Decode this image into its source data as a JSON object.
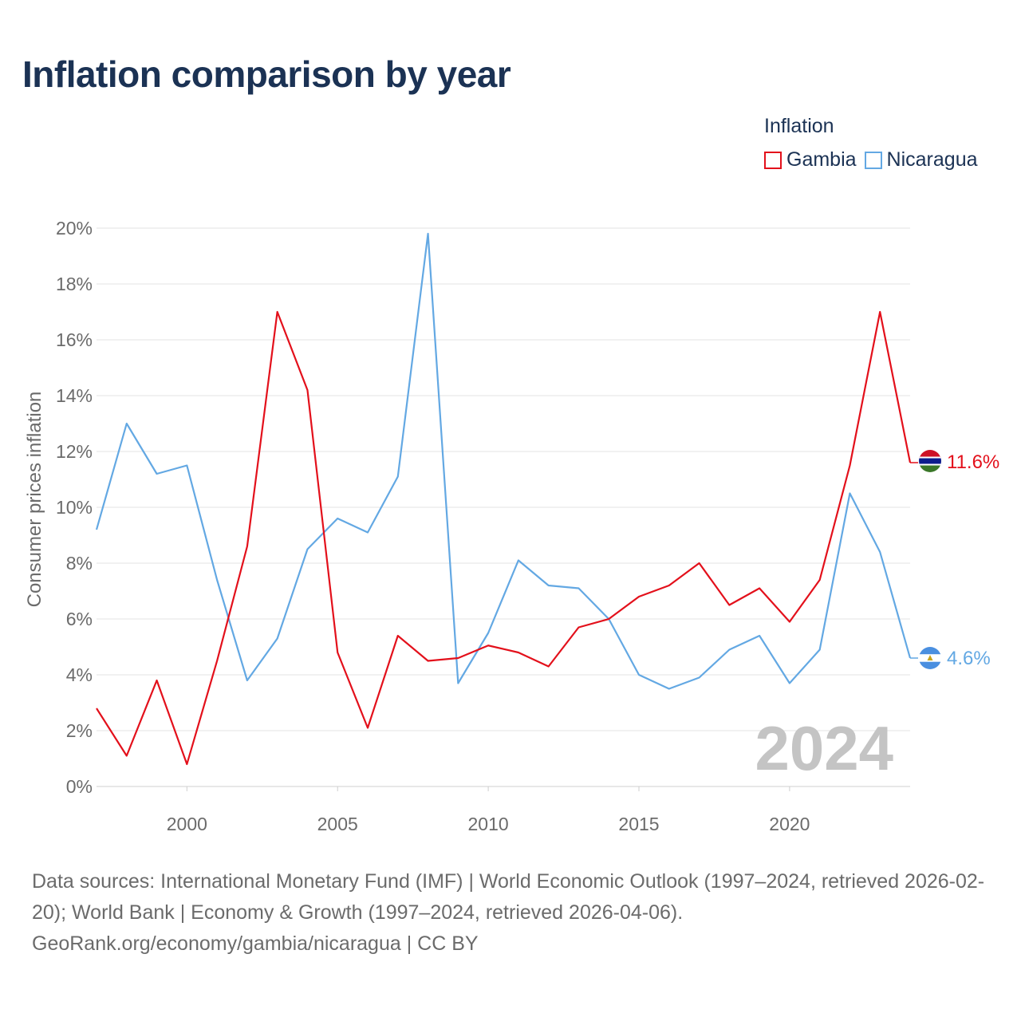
{
  "title": "Inflation comparison by year",
  "legend": {
    "title": "Inflation",
    "items": [
      {
        "label": "Gambia",
        "color": "#e3101b"
      },
      {
        "label": "Nicaragua",
        "color": "#63a8e3"
      }
    ]
  },
  "chart_data": {
    "type": "line",
    "title": "Inflation comparison by year",
    "xlabel": "",
    "ylabel": "Consumer prices inflation",
    "x": [
      1997,
      1998,
      1999,
      2000,
      2001,
      2002,
      2003,
      2004,
      2005,
      2006,
      2007,
      2008,
      2009,
      2010,
      2011,
      2012,
      2013,
      2014,
      2015,
      2016,
      2017,
      2018,
      2019,
      2020,
      2021,
      2022,
      2023,
      2024
    ],
    "xlim": [
      1997,
      2024
    ],
    "ylim": [
      0,
      20
    ],
    "y_ticks": [
      0,
      2,
      4,
      6,
      8,
      10,
      12,
      14,
      16,
      18,
      20
    ],
    "y_tick_labels": [
      "0%",
      "2%",
      "4%",
      "6%",
      "8%",
      "10%",
      "12%",
      "14%",
      "16%",
      "18%",
      "20%"
    ],
    "x_ticks": [
      2000,
      2005,
      2010,
      2015,
      2020
    ],
    "x_tick_labels": [
      "2000",
      "2005",
      "2010",
      "2015",
      "2020"
    ],
    "grid": true,
    "legend_position": "top-right",
    "year_watermark": "2024",
    "series": [
      {
        "name": "Gambia",
        "color": "#e3101b",
        "end_label": "11.6%",
        "values": [
          2.8,
          1.1,
          3.8,
          0.8,
          4.5,
          8.6,
          17.0,
          14.2,
          4.8,
          2.1,
          5.4,
          4.5,
          4.6,
          5.05,
          4.8,
          4.3,
          5.7,
          6.0,
          6.8,
          7.2,
          8.0,
          6.5,
          7.1,
          5.9,
          7.4,
          11.5,
          17.0,
          11.6
        ]
      },
      {
        "name": "Nicaragua",
        "color": "#63a8e3",
        "end_label": "4.6%",
        "values": [
          9.2,
          13.0,
          11.2,
          11.5,
          7.4,
          3.8,
          5.3,
          8.5,
          9.6,
          9.1,
          11.1,
          19.8,
          3.7,
          5.5,
          8.1,
          7.2,
          7.1,
          6.0,
          4.0,
          3.5,
          3.9,
          4.9,
          5.4,
          3.7,
          4.9,
          10.5,
          8.4,
          4.6
        ]
      }
    ]
  },
  "footer": {
    "line1": "Data sources: International Monetary Fund (IMF) | World Economic Outlook (1997–2024, retrieved 2026-02-20); World Bank | Economy & Growth (1997–2024, retrieved 2026-04-06).",
    "line2": "GeoRank.org/economy/gambia/nicaragua | CC BY"
  }
}
